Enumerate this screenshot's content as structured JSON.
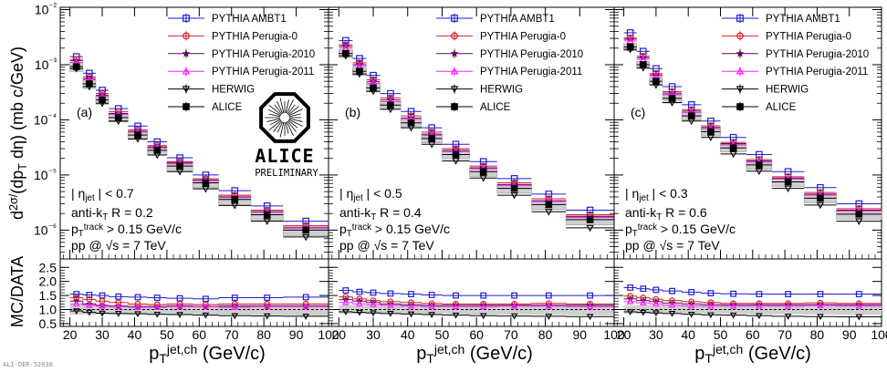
{
  "figure": {
    "y_axis_title_top": "d²σ/(dp_T dη) (mb c/GeV)",
    "y_axis_title_bottom": "MC/DATA",
    "x_axis_title": "p_T^jet,ch (GeV/c)",
    "alice_logo_text": "ALICE",
    "alice_logo_sub": "PRELIMINARY",
    "figure_id": "ALI-DER-52038"
  },
  "colors": {
    "ambt1": "#1d1dd6",
    "perugia0": "#d62020",
    "perugia2010": "#5a0a5a",
    "perugia2011": "#ff22ff",
    "herwig": "#000000",
    "alice": "#000000",
    "syst_band": "#cfcfcf"
  },
  "legend": [
    {
      "key": "ambt1",
      "label": "PYTHIA AMBT1",
      "marker": "open-square"
    },
    {
      "key": "perugia0",
      "label": "PYTHIA Perugia-0",
      "marker": "open-diamond"
    },
    {
      "key": "perugia2010",
      "label": "PYTHIA Perugia-2010",
      "marker": "star"
    },
    {
      "key": "perugia2011",
      "label": "PYTHIA Perugia-2011",
      "marker": "open-triangle-up"
    },
    {
      "key": "herwig",
      "label": "HERWIG",
      "marker": "open-triangle-down"
    },
    {
      "key": "alice",
      "label": "ALICE",
      "marker": "filled-square"
    }
  ],
  "chart_data": [
    {
      "type": "scatter",
      "panel_tag": "(a)",
      "info": [
        "| η_jet | < 0.7",
        "anti-k_T R = 0.2",
        "p_T^track > 0.15 GeV/c",
        "pp @ √s = 7 TeV"
      ],
      "x_bins": [
        [
          20,
          24
        ],
        [
          24,
          28
        ],
        [
          28,
          32
        ],
        [
          32,
          38
        ],
        [
          38,
          44
        ],
        [
          44,
          50
        ],
        [
          50,
          58
        ],
        [
          58,
          66
        ],
        [
          66,
          76
        ],
        [
          76,
          86
        ],
        [
          86,
          100
        ]
      ],
      "x": [
        22,
        26,
        30,
        35,
        41,
        47,
        54,
        62,
        71,
        81,
        93
      ],
      "series": [
        {
          "key": "alice",
          "values": [
            0.00092,
            0.00045,
            0.00023,
            0.00011,
            5.3e-05,
            2.8e-05,
            1.45e-05,
            7.2e-06,
            3.6e-06,
            1.9e-06,
            1e-06
          ]
        },
        {
          "key": "ambt1",
          "values": [
            0.0014,
            0.0007,
            0.000345,
            0.00016,
            7.7e-05,
            4e-05,
            2.05e-05,
            1e-05,
            5.2e-06,
            2.75e-06,
            1.45e-06
          ]
        },
        {
          "key": "perugia0",
          "values": [
            0.00125,
            0.0006,
            0.0003,
            0.00014,
            6.6e-05,
            3.4e-05,
            1.75e-05,
            8.5e-06,
            4.3e-06,
            2.3e-06,
            1.2e-06
          ]
        },
        {
          "key": "perugia2010",
          "values": [
            0.00118,
            0.00056,
            0.00028,
            0.00013,
            6.2e-05,
            3.2e-05,
            1.65e-05,
            8e-06,
            4e-06,
            2.15e-06,
            1.1e-06
          ]
        },
        {
          "key": "perugia2011",
          "values": [
            0.0011,
            0.00053,
            0.000265,
            0.000125,
            6e-05,
            3.1e-05,
            1.6e-05,
            7.8e-06,
            3.9e-06,
            2.1e-06,
            1.08e-06
          ]
        },
        {
          "key": "herwig",
          "values": [
            0.00085,
            0.0004,
            0.0002,
            9.5e-05,
            4.5e-05,
            2.3e-05,
            1.15e-05,
            5.6e-06,
            2.8e-06,
            1.45e-06,
            7.5e-07
          ]
        }
      ],
      "ratios": [
        {
          "key": "ambt1",
          "values": [
            1.55,
            1.52,
            1.5,
            1.46,
            1.44,
            1.42,
            1.4,
            1.38,
            1.42,
            1.42,
            1.44
          ]
        },
        {
          "key": "perugia0",
          "values": [
            1.42,
            1.36,
            1.3,
            1.25,
            1.2,
            1.18,
            1.2,
            1.18,
            1.2,
            1.2,
            1.2
          ]
        },
        {
          "key": "perugia2010",
          "values": [
            1.3,
            1.2,
            1.15,
            1.12,
            1.1,
            1.1,
            1.12,
            1.1,
            1.12,
            1.12,
            1.12
          ]
        },
        {
          "key": "perugia2011",
          "values": [
            1.2,
            1.15,
            1.12,
            1.1,
            1.08,
            1.08,
            1.1,
            1.1,
            1.08,
            1.1,
            1.1
          ]
        },
        {
          "key": "herwig",
          "values": [
            0.95,
            0.9,
            0.87,
            0.86,
            0.85,
            0.83,
            0.82,
            0.8,
            0.78,
            0.77,
            0.76
          ]
        }
      ],
      "syst_frac": [
        0.18,
        0.18,
        0.17,
        0.17,
        0.17,
        0.18,
        0.18,
        0.19,
        0.19,
        0.2,
        0.21
      ],
      "xlim": [
        17,
        100
      ],
      "ylim_top": [
        3e-07,
        0.011
      ],
      "ylim_bottom": [
        0.4,
        2.8
      ],
      "yscale_top": "log",
      "ytick_labels_top": [
        "10⁻⁶",
        "10⁻⁵",
        "10⁻⁴",
        "10⁻³",
        "10⁻²"
      ],
      "ytick_labels_bottom": [
        "0.5",
        "1.0",
        "1.5",
        "2.0",
        "2.5"
      ],
      "xtick_labels": [
        "20",
        "30",
        "40",
        "50",
        "60",
        "70",
        "80",
        "90",
        "100"
      ]
    },
    {
      "type": "scatter",
      "panel_tag": "(b)",
      "info": [
        "| η_jet | < 0.5",
        "anti-k_T R = 0.4",
        "p_T^track > 0.15 GeV/c",
        "pp @ √s = 7 TeV"
      ],
      "x_bins": [
        [
          20,
          24
        ],
        [
          24,
          28
        ],
        [
          28,
          32
        ],
        [
          32,
          38
        ],
        [
          38,
          44
        ],
        [
          44,
          50
        ],
        [
          50,
          58
        ],
        [
          58,
          66
        ],
        [
          66,
          76
        ],
        [
          76,
          86
        ],
        [
          86,
          100
        ]
      ],
      "x": [
        22,
        26,
        30,
        35,
        41,
        47,
        54,
        62,
        71,
        81,
        93
      ],
      "series": [
        {
          "key": "alice",
          "values": [
            0.0016,
            0.00076,
            0.00038,
            0.000185,
            8.8e-05,
            4.6e-05,
            2.35e-05,
            1.15e-05,
            5.7e-06,
            2.9e-06,
            1.55e-06
          ]
        },
        {
          "key": "ambt1",
          "values": [
            0.00275,
            0.0013,
            0.00064,
            0.0003,
            0.000142,
            7.2e-05,
            3.6e-05,
            1.75e-05,
            8.6e-06,
            4.5e-06,
            2.3e-06
          ]
        },
        {
          "key": "perugia0",
          "values": [
            0.0023,
            0.00108,
            0.00053,
            0.00025,
            0.000118,
            6e-05,
            3e-05,
            1.45e-05,
            7.2e-06,
            3.7e-06,
            1.9e-06
          ]
        },
        {
          "key": "perugia2010",
          "values": [
            0.00215,
            0.001,
            0.00049,
            0.00023,
            0.000108,
            5.5e-05,
            2.8e-05,
            1.35e-05,
            6.7e-06,
            3.4e-06,
            1.75e-06
          ]
        },
        {
          "key": "perugia2011",
          "values": [
            0.002,
            0.00094,
            0.00046,
            0.000215,
            0.000102,
            5.2e-05,
            2.65e-05,
            1.3e-05,
            6.4e-06,
            3.3e-06,
            1.7e-06
          ]
        },
        {
          "key": "herwig",
          "values": [
            0.00145,
            0.00068,
            0.00033,
            0.000155,
            7.2e-05,
            3.6e-05,
            1.8e-05,
            8.8e-06,
            4.3e-06,
            2.15e-06,
            1.1e-06
          ]
        }
      ],
      "ratios": [
        {
          "key": "ambt1",
          "values": [
            1.68,
            1.63,
            1.6,
            1.57,
            1.55,
            1.52,
            1.5,
            1.5,
            1.5,
            1.5,
            1.5
          ]
        },
        {
          "key": "perugia0",
          "values": [
            1.45,
            1.38,
            1.32,
            1.28,
            1.25,
            1.22,
            1.2,
            1.2,
            1.2,
            1.22,
            1.2
          ]
        },
        {
          "key": "perugia2010",
          "values": [
            1.35,
            1.3,
            1.25,
            1.2,
            1.17,
            1.15,
            1.15,
            1.15,
            1.15,
            1.15,
            1.15
          ]
        },
        {
          "key": "perugia2011",
          "values": [
            1.25,
            1.2,
            1.18,
            1.15,
            1.12,
            1.1,
            1.1,
            1.1,
            1.12,
            1.12,
            1.1
          ]
        },
        {
          "key": "herwig",
          "values": [
            0.92,
            0.9,
            0.88,
            0.86,
            0.84,
            0.82,
            0.8,
            0.78,
            0.77,
            0.76,
            0.75
          ]
        }
      ],
      "syst_frac": [
        0.16,
        0.16,
        0.16,
        0.16,
        0.17,
        0.17,
        0.17,
        0.18,
        0.18,
        0.19,
        0.2
      ],
      "xlim": [
        17,
        100
      ],
      "ylim_top": [
        3e-07,
        0.011
      ],
      "ylim_bottom": [
        0.4,
        2.8
      ],
      "yscale_top": "log",
      "xtick_labels": [
        "20",
        "30",
        "40",
        "50",
        "60",
        "70",
        "80",
        "90",
        "100"
      ]
    },
    {
      "type": "scatter",
      "panel_tag": "(c)",
      "info": [
        "| η_jet | < 0.3",
        "anti-k_T R = 0.6",
        "p_T^track > 0.15 GeV/c",
        "pp @ √s = 7 TeV"
      ],
      "x_bins": [
        [
          20,
          24
        ],
        [
          24,
          28
        ],
        [
          28,
          32
        ],
        [
          32,
          38
        ],
        [
          38,
          44
        ],
        [
          44,
          50
        ],
        [
          50,
          58
        ],
        [
          58,
          66
        ],
        [
          66,
          76
        ],
        [
          76,
          86
        ],
        [
          86,
          100
        ]
      ],
      "x": [
        22,
        26,
        30,
        35,
        41,
        47,
        54,
        62,
        71,
        81,
        93
      ],
      "series": [
        {
          "key": "alice",
          "values": [
            0.0021,
            0.001,
            0.0005,
            0.000245,
            0.000118,
            6.1e-05,
            3.1e-05,
            1.52e-05,
            7.5e-06,
            3.8e-06,
            1.95e-06
          ]
        },
        {
          "key": "ambt1",
          "values": [
            0.0038,
            0.00175,
            0.00085,
            0.0004,
            0.000188,
            9.5e-05,
            4.8e-05,
            2.35e-05,
            1.15e-05,
            5.9e-06,
            3e-06
          ]
        },
        {
          "key": "perugia0",
          "values": [
            0.00305,
            0.00142,
            0.00069,
            0.000325,
            0.000153,
            7.8e-05,
            3.9e-05,
            1.9e-05,
            9.3e-06,
            4.8e-06,
            2.45e-06
          ]
        },
        {
          "key": "perugia2010",
          "values": [
            0.0029,
            0.00134,
            0.00065,
            0.000305,
            0.000144,
            7.3e-05,
            3.7e-05,
            1.8e-05,
            8.8e-06,
            4.5e-06,
            2.3e-06
          ]
        },
        {
          "key": "perugia2011",
          "values": [
            0.0027,
            0.00125,
            0.00061,
            0.00029,
            0.000136,
            6.9e-05,
            3.5e-05,
            1.7e-05,
            8.4e-06,
            4.3e-06,
            2.2e-06
          ]
        },
        {
          "key": "herwig",
          "values": [
            0.0019,
            0.00088,
            0.00043,
            0.000205,
            9.5e-05,
            4.8e-05,
            2.4e-05,
            1.17e-05,
            5.7e-06,
            2.85e-06,
            1.45e-06
          ]
        }
      ],
      "ratios": [
        {
          "key": "ambt1",
          "values": [
            1.78,
            1.74,
            1.7,
            1.66,
            1.62,
            1.58,
            1.56,
            1.55,
            1.55,
            1.55,
            1.55
          ]
        },
        {
          "key": "perugia0",
          "values": [
            1.48,
            1.42,
            1.37,
            1.32,
            1.28,
            1.25,
            1.22,
            1.22,
            1.22,
            1.24,
            1.22
          ]
        },
        {
          "key": "perugia2010",
          "values": [
            1.38,
            1.32,
            1.28,
            1.23,
            1.2,
            1.18,
            1.17,
            1.17,
            1.17,
            1.18,
            1.17
          ]
        },
        {
          "key": "perugia2011",
          "values": [
            1.28,
            1.24,
            1.2,
            1.16,
            1.13,
            1.12,
            1.12,
            1.12,
            1.12,
            1.14,
            1.12
          ]
        },
        {
          "key": "herwig",
          "values": [
            0.92,
            0.9,
            0.88,
            0.86,
            0.83,
            0.81,
            0.8,
            0.78,
            0.76,
            0.75,
            0.74
          ]
        }
      ],
      "syst_frac": [
        0.15,
        0.15,
        0.15,
        0.15,
        0.16,
        0.16,
        0.16,
        0.17,
        0.17,
        0.18,
        0.19
      ],
      "xlim": [
        17,
        100
      ],
      "ylim_top": [
        3e-07,
        0.011
      ],
      "ylim_bottom": [
        0.4,
        2.8
      ],
      "yscale_top": "log",
      "xtick_labels": [
        "20",
        "30",
        "40",
        "50",
        "60",
        "70",
        "80",
        "90",
        "100"
      ]
    }
  ]
}
